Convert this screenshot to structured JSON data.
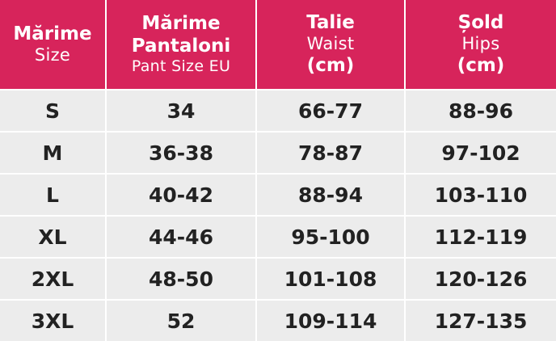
{
  "table": {
    "header": [
      [
        "Mărime",
        "Size"
      ],
      [
        "Mărime",
        "Pantaloni",
        "Pant Size EU"
      ],
      [
        "Talie",
        "Waist",
        "(cm)"
      ],
      [
        "Șold",
        "Hips",
        "(cm)"
      ]
    ],
    "rows": [
      [
        "S",
        "34",
        "66-77",
        "88-96"
      ],
      [
        "M",
        "36-38",
        "78-87",
        "97-102"
      ],
      [
        "L",
        "40-42",
        "88-94",
        "103-110"
      ],
      [
        "XL",
        "44-46",
        "95-100",
        "112-119"
      ],
      [
        "2XL",
        "48-50",
        "101-108",
        "120-126"
      ],
      [
        "3XL",
        "52",
        "109-114",
        "127-135"
      ]
    ]
  }
}
